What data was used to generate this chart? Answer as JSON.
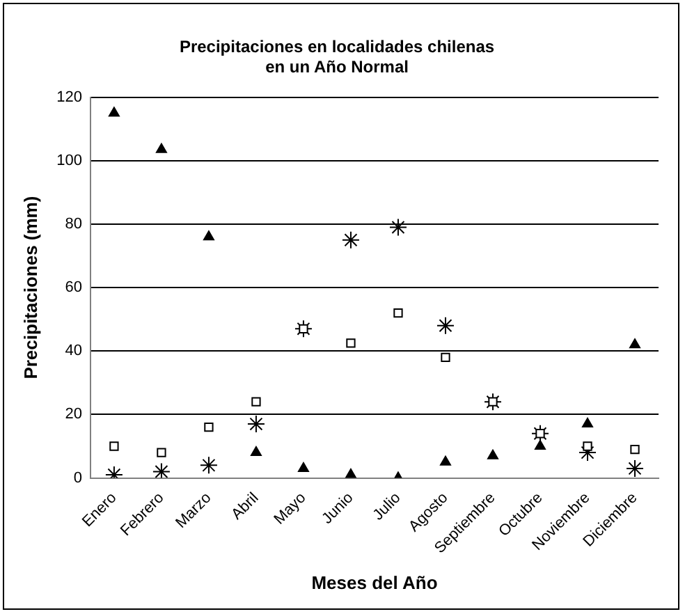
{
  "chart_data": {
    "type": "scatter",
    "title": "Precipitaciones en localidades chilenas\nen un Año Normal",
    "xlabel": "Meses del Año",
    "ylabel": "Precipitaciones (mm)",
    "categories": [
      "Enero",
      "Febrero",
      "Marzo",
      "Abril",
      "Mayo",
      "Junio",
      "Julio",
      "Agosto",
      "Septiembre",
      "Octubre",
      "Noviembre",
      "Diciembre"
    ],
    "series": [
      {
        "color": "#000000",
        "marker": "triangle",
        "values": [
          115,
          103.5,
          76,
          8,
          3,
          1,
          0,
          5,
          7,
          10,
          17,
          42
        ]
      },
      {
        "color": "#000000",
        "marker": "square",
        "values": [
          10,
          8,
          16,
          24,
          47,
          42.5,
          52,
          38,
          24,
          14,
          10,
          9
        ]
      },
      {
        "color": "#000000",
        "marker": "cross",
        "values": [
          1,
          2,
          4,
          17,
          47,
          75,
          79,
          48,
          24,
          14,
          8,
          3
        ]
      }
    ],
    "ylim": [
      0,
      120
    ],
    "yticks": [
      0,
      20,
      40,
      60,
      80,
      100,
      120
    ],
    "grid": "y",
    "legend": false
  }
}
